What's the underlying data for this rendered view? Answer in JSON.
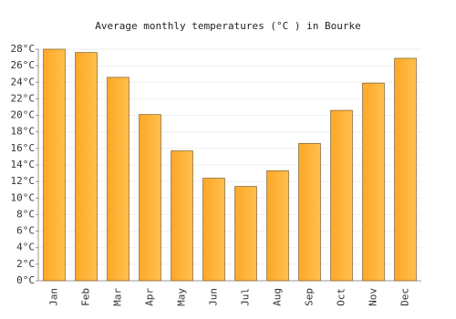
{
  "chart_data": {
    "type": "bar",
    "title": "Average monthly temperatures (°C ) in Bourke",
    "categories": [
      "Jan",
      "Feb",
      "Mar",
      "Apr",
      "May",
      "Jun",
      "Jul",
      "Aug",
      "Sep",
      "Oct",
      "Nov",
      "Dec"
    ],
    "values": [
      28.0,
      27.6,
      24.6,
      20.1,
      15.7,
      12.4,
      11.4,
      13.3,
      16.6,
      20.6,
      23.9,
      26.9
    ],
    "color": "#ffa726",
    "ylim": [
      0,
      28
    ],
    "yticks": [
      {
        "value": 0,
        "label": "0°C"
      },
      {
        "value": 2,
        "label": "2°C"
      },
      {
        "value": 4,
        "label": "4°C"
      },
      {
        "value": 6,
        "label": "6°C"
      },
      {
        "value": 8,
        "label": "8°C"
      },
      {
        "value": 10,
        "label": "10°C"
      },
      {
        "value": 12,
        "label": "12°C"
      },
      {
        "value": 14,
        "label": "14°C"
      },
      {
        "value": 16,
        "label": "16°C"
      },
      {
        "value": 18,
        "label": "18°C"
      },
      {
        "value": 20,
        "label": "20°C"
      },
      {
        "value": 22,
        "label": "22°C"
      },
      {
        "value": 24,
        "label": "24°C"
      },
      {
        "value": 26,
        "label": "26°C"
      },
      {
        "value": 28,
        "label": "28°C"
      }
    ],
    "grid": true
  }
}
